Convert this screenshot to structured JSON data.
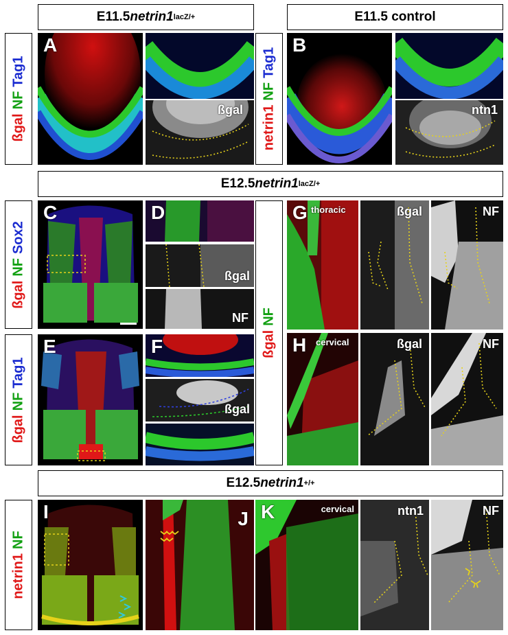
{
  "headers": {
    "top_left": {
      "prefix": "E11.5 ",
      "gene": "netrin1",
      "sup": "lacZ/+"
    },
    "top_right": {
      "text": "E11.5 control"
    },
    "middle": {
      "prefix": "E12.5 ",
      "gene": "netrin1",
      "sup": "lacZ/+"
    },
    "bottom": {
      "prefix": "E12.5 ",
      "gene": "netrin1",
      "sup": "+/+"
    }
  },
  "side_labels": {
    "row_a": [
      {
        "text": "ßgal",
        "color": "#e01818"
      },
      {
        "text": "NF",
        "color": "#12a012"
      },
      {
        "text": "Tag1",
        "color": "#1a2bd0"
      }
    ],
    "row_b": [
      {
        "text": "netrin1",
        "color": "#e01818"
      },
      {
        "text": "NF",
        "color": "#12a012"
      },
      {
        "text": "Tag1",
        "color": "#1a2bd0"
      }
    ],
    "row_c": [
      {
        "text": "ßgal",
        "color": "#e01818"
      },
      {
        "text": "NF",
        "color": "#12a012"
      },
      {
        "text": "Sox2",
        "color": "#1a2bd0"
      }
    ],
    "row_e": [
      {
        "text": "ßgal",
        "color": "#e01818"
      },
      {
        "text": "NF",
        "color": "#12a012"
      },
      {
        "text": "Tag1",
        "color": "#1a2bd0"
      }
    ],
    "row_gh": [
      {
        "text": "ßgal",
        "color": "#e01818"
      },
      {
        "text": "NF",
        "color": "#12a012"
      }
    ],
    "row_i": [
      {
        "text": "netrin1",
        "color": "#e01818"
      },
      {
        "text": "NF",
        "color": "#12a012"
      }
    ]
  },
  "panel_letters": {
    "a": "A",
    "b": "B",
    "c": "C",
    "d": "D",
    "e": "E",
    "f": "F",
    "g": "G",
    "h": "H",
    "i": "I",
    "j": "J",
    "k": "K"
  },
  "channel_labels": {
    "a_inset": "ßgal",
    "b_inset": "ntn1",
    "d_mid": "ßgal",
    "d_bot": "NF",
    "f_mid": "ßgal",
    "g_region": "thoracic",
    "g_mid": "ßgal",
    "g_right": "NF",
    "h_region": "cervical",
    "h_mid": "ßgal",
    "h_right": "NF",
    "k_region": "cervical",
    "k_mid": "ntn1",
    "k_right": "NF"
  },
  "colors": {
    "red": "#e01818",
    "green": "#12a012",
    "blue": "#1a2bd0",
    "dotted": "#e6d21a"
  }
}
